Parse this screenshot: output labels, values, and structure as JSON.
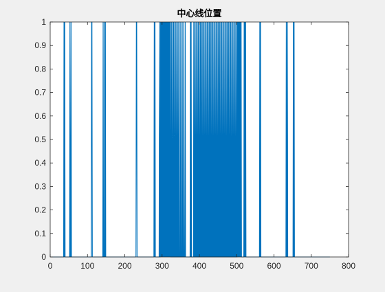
{
  "colors": {
    "background": "#f0f0f0",
    "axes_background": "#ffffff",
    "axis_line": "#262626",
    "series": "#0072BD"
  },
  "chart_data": {
    "type": "line",
    "title": "中心线位置",
    "xlabel": "",
    "ylabel": "",
    "xlim": [
      0,
      800
    ],
    "ylim": [
      0,
      1
    ],
    "grid": false,
    "legend": "none",
    "x_ticks": [
      0,
      100,
      200,
      300,
      400,
      500,
      600,
      700,
      800
    ],
    "x_tick_labels": [
      "0",
      "100",
      "200",
      "300",
      "400",
      "500",
      "600",
      "700",
      "800"
    ],
    "y_ticks": [
      0,
      0.1,
      0.2,
      0.3,
      0.4,
      0.5,
      0.6,
      0.7,
      0.8,
      0.9,
      1
    ],
    "y_tick_labels": [
      "0",
      "0.1",
      "0.2",
      "0.3",
      "0.4",
      "0.5",
      "0.6",
      "0.7",
      "0.8",
      "0.9",
      "1"
    ],
    "series": [
      {
        "x_range": [
          1,
          750
        ],
        "description_values": "binary signal: value 1 at listed x positions, 0 elsewhere",
        "one_at": [
          37,
          39,
          53,
          56,
          111,
          112,
          142,
          146,
          148,
          231,
          232,
          279,
          281,
          293,
          296,
          298,
          300,
          302,
          304,
          306,
          308,
          310,
          312,
          314,
          316,
          318,
          320,
          322,
          325,
          328,
          331,
          334,
          337,
          340,
          343,
          346,
          350,
          354,
          358,
          362,
          376,
          378,
          385,
          388,
          391,
          394,
          397,
          400,
          403,
          406,
          409,
          412,
          415,
          418,
          421,
          424,
          427,
          430,
          433,
          436,
          439,
          442,
          445,
          448,
          451,
          454,
          457,
          460,
          463,
          466,
          469,
          472,
          475,
          478,
          481,
          484,
          487,
          490,
          493,
          496,
          499,
          502,
          504,
          506,
          508,
          510,
          512,
          520,
          522,
          524,
          562,
          564,
          633,
          636,
          652,
          654
        ]
      }
    ]
  }
}
